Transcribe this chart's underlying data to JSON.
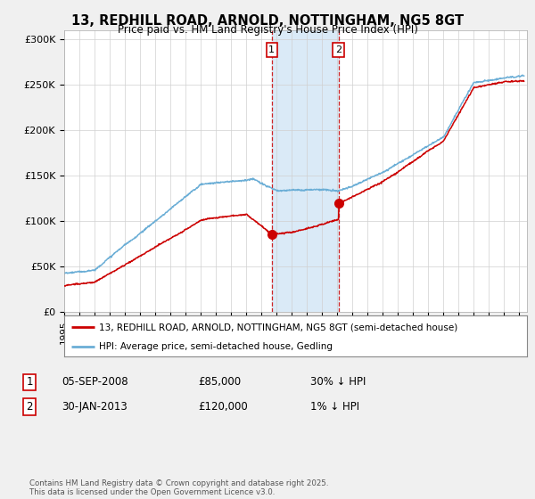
{
  "title": "13, REDHILL ROAD, ARNOLD, NOTTINGHAM, NG5 8GT",
  "subtitle": "Price paid vs. HM Land Registry's House Price Index (HPI)",
  "background_color": "#f0f0f0",
  "plot_bg_color": "#ffffff",
  "ylabel_ticks": [
    "£0",
    "£50K",
    "£100K",
    "£150K",
    "£200K",
    "£250K",
    "£300K"
  ],
  "ytick_values": [
    0,
    50000,
    100000,
    150000,
    200000,
    250000,
    300000
  ],
  "ylim": [
    0,
    310000
  ],
  "xlim_start": 1995.0,
  "xlim_end": 2025.5,
  "hpi_color": "#6baed6",
  "price_color": "#cc0000",
  "shade_color": "#daeaf7",
  "sale1_date": 2008.68,
  "sale2_date": 2013.08,
  "sale1_price": 85000,
  "sale2_price": 120000,
  "legend_label1": "13, REDHILL ROAD, ARNOLD, NOTTINGHAM, NG5 8GT (semi-detached house)",
  "legend_label2": "HPI: Average price, semi-detached house, Gedling",
  "table_row1": [
    "1",
    "05-SEP-2008",
    "£85,000",
    "30% ↓ HPI"
  ],
  "table_row2": [
    "2",
    "30-JAN-2013",
    "£120,000",
    "1% ↓ HPI"
  ],
  "footer": "Contains HM Land Registry data © Crown copyright and database right 2025.\nThis data is licensed under the Open Government Licence v3.0."
}
